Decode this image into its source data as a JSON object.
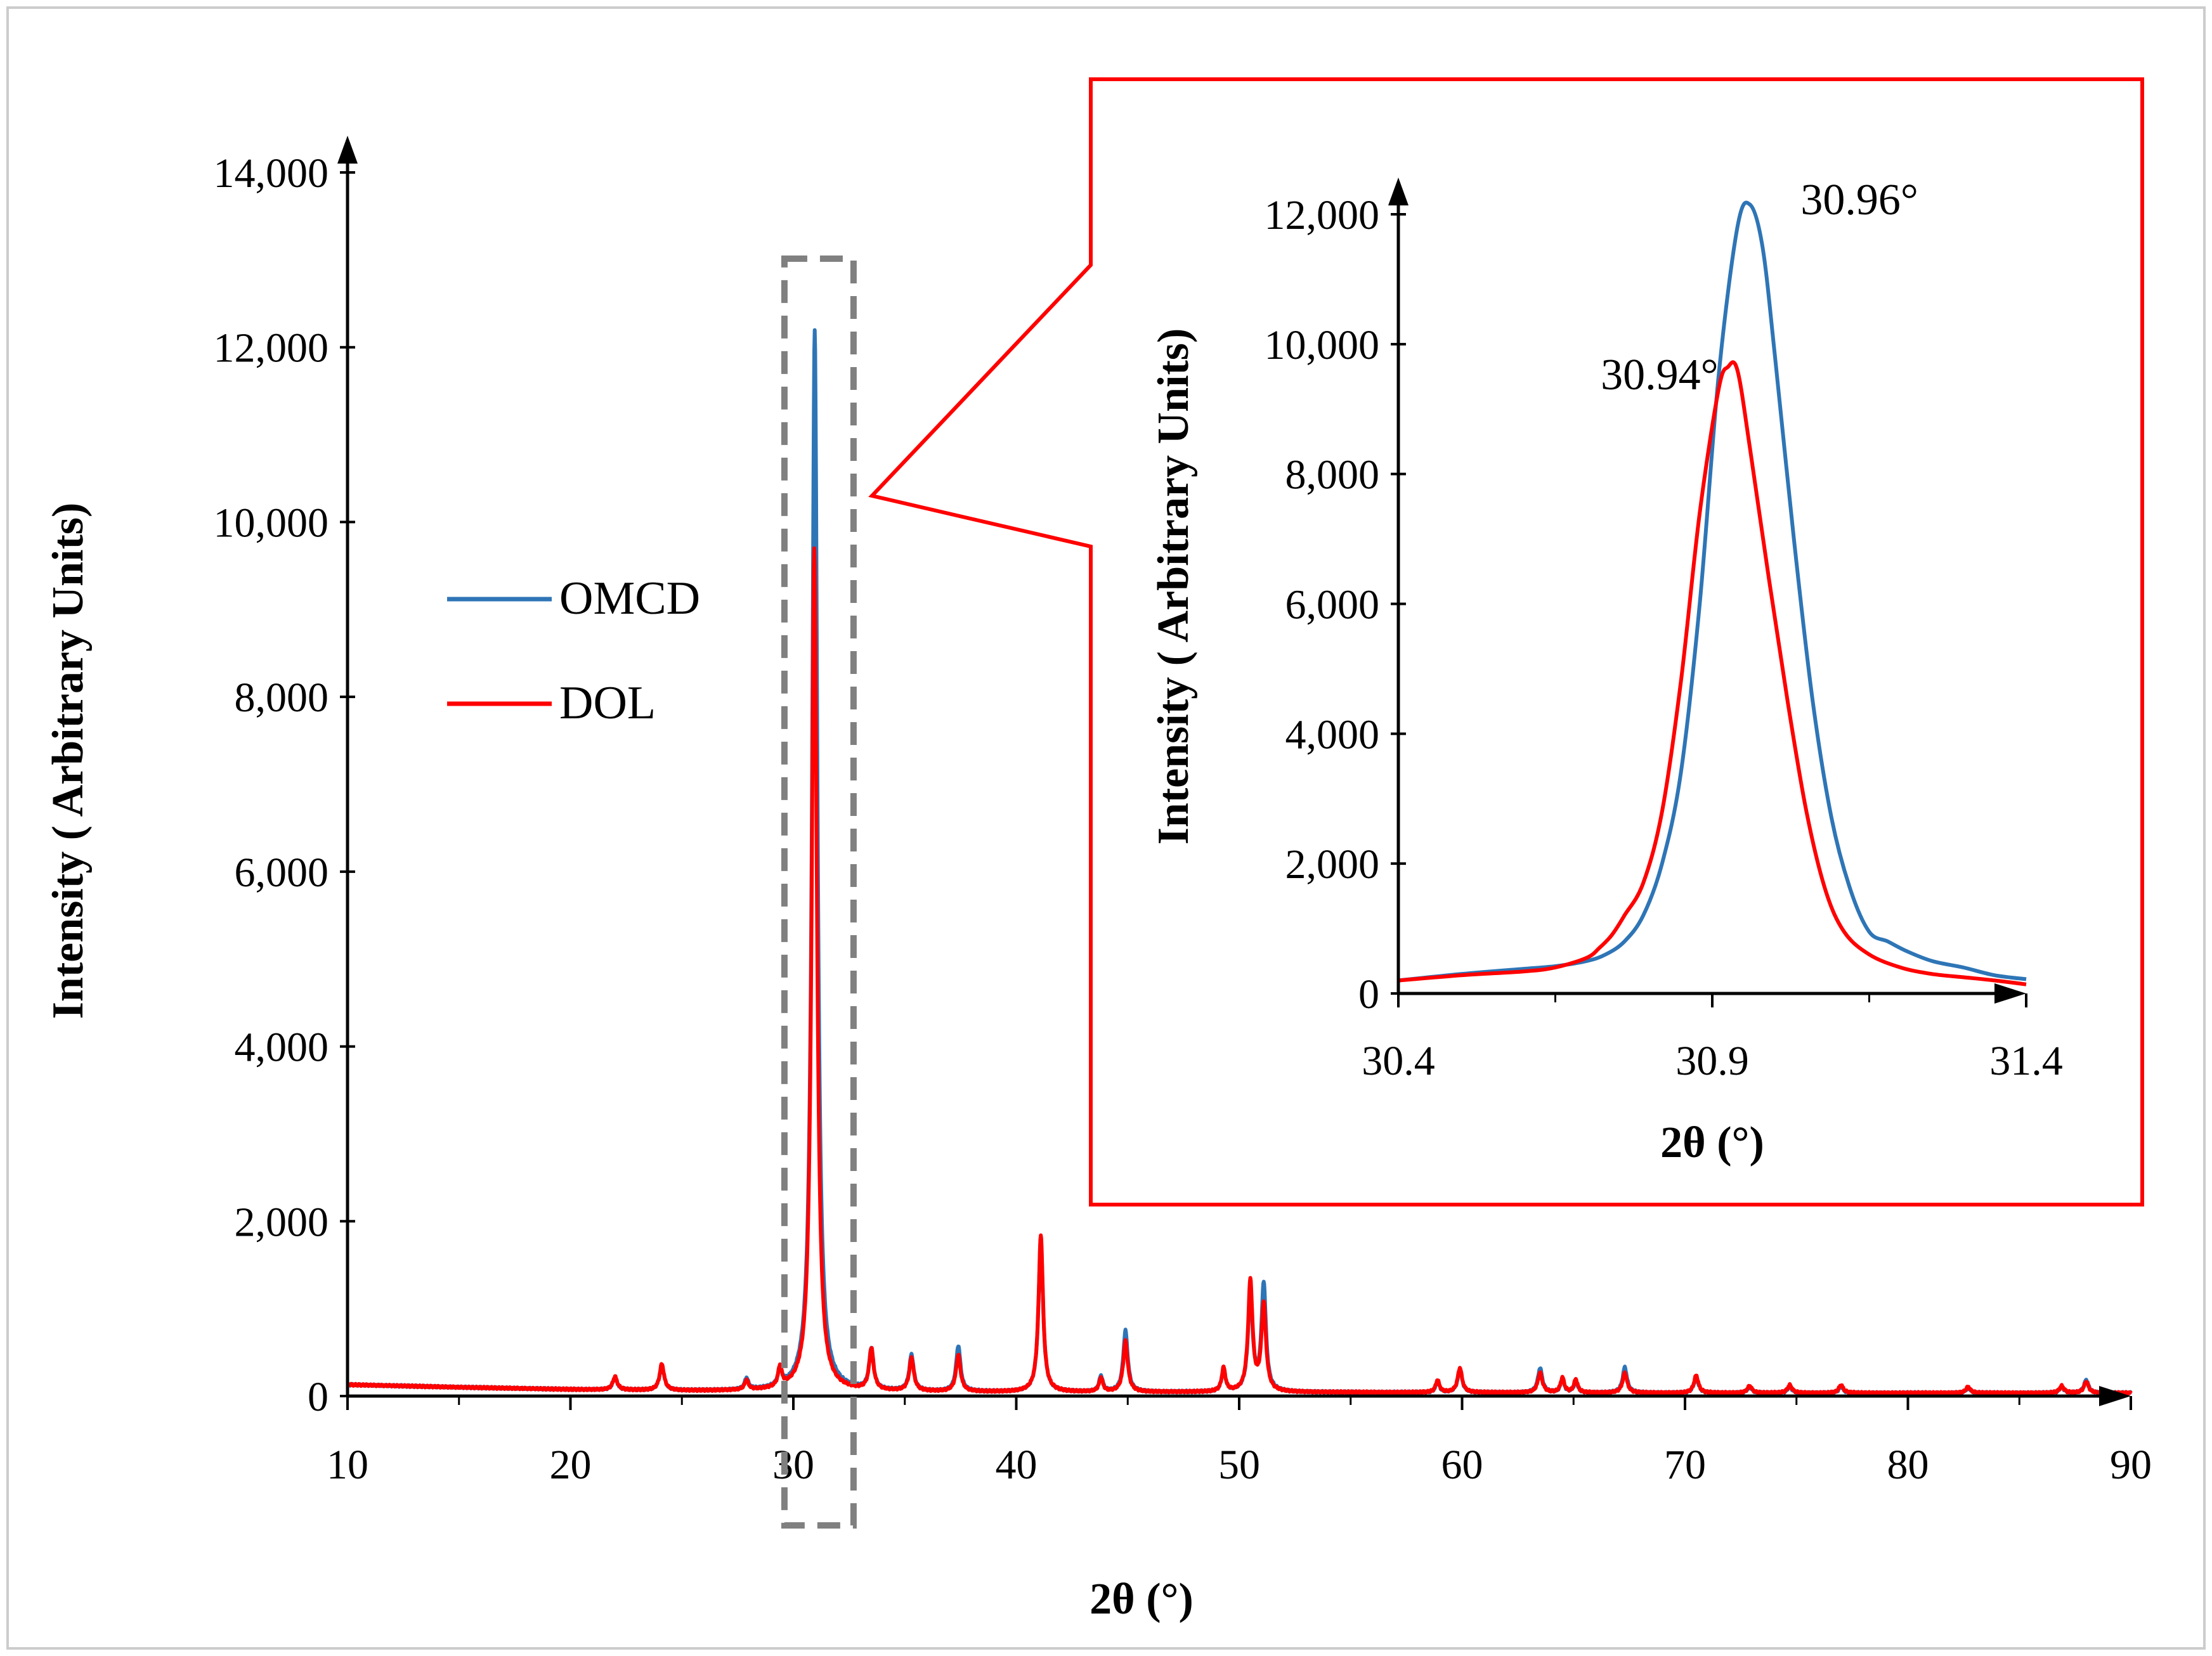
{
  "colors": {
    "omcd": "#2e75b6",
    "dol": "#ff0000",
    "inset_border": "#ff0000",
    "highlight_box": "#808080"
  },
  "legend": [
    {
      "label": "OMCD",
      "color": "#2e75b6"
    },
    {
      "label": "DOL",
      "color": "#ff0000"
    }
  ],
  "chart_data": [
    {
      "type": "line",
      "xlabel": "2θ (°)",
      "ylabel": "Intensity ( Arbitrary Units)",
      "xlim": [
        10,
        90
      ],
      "ylim": [
        0,
        14000
      ],
      "xticks": [
        10,
        20,
        30,
        40,
        50,
        60,
        70,
        80,
        90
      ],
      "xtick_labels": [
        "10",
        "20",
        "30",
        "40",
        "50",
        "60",
        "70",
        "80",
        "90"
      ],
      "yticks": [
        0,
        2000,
        4000,
        6000,
        8000,
        10000,
        12000,
        14000
      ],
      "ytick_labels": [
        "0",
        "2,000",
        "4,000",
        "6,000",
        "8,000",
        "10,000",
        "12,000",
        "14,000"
      ],
      "legend_position": "left",
      "grid": false,
      "highlight_range": [
        29.6,
        32.7
      ],
      "series": [
        {
          "name": "OMCD",
          "baseline": [
            [
              10,
              130
            ],
            [
              15,
              100
            ],
            [
              20,
              75
            ],
            [
              25,
              60
            ],
            [
              30,
              55
            ],
            [
              40,
              45
            ],
            [
              50,
              45
            ],
            [
              60,
              40
            ],
            [
              70,
              35
            ],
            [
              80,
              35
            ],
            [
              90,
              35
            ]
          ],
          "peaks": [
            [
              22.0,
              140,
              0.12
            ],
            [
              24.1,
              290,
              0.12
            ],
            [
              27.9,
              130,
              0.1
            ],
            [
              29.4,
              200,
              0.1
            ],
            [
              30.96,
              12150,
              0.14
            ],
            [
              33.5,
              470,
              0.12
            ],
            [
              35.3,
              410,
              0.12
            ],
            [
              37.4,
              520,
              0.12
            ],
            [
              41.1,
              1750,
              0.12
            ],
            [
              43.8,
              180,
              0.1
            ],
            [
              44.9,
              700,
              0.12
            ],
            [
              49.3,
              260,
              0.1
            ],
            [
              50.5,
              1150,
              0.12
            ],
            [
              51.1,
              1230,
              0.12
            ],
            [
              58.9,
              120,
              0.1
            ],
            [
              59.9,
              260,
              0.12
            ],
            [
              63.5,
              280,
              0.12
            ],
            [
              64.5,
              150,
              0.1
            ],
            [
              65.1,
              130,
              0.1
            ],
            [
              67.3,
              290,
              0.12
            ],
            [
              70.5,
              180,
              0.12
            ],
            [
              72.9,
              70,
              0.12
            ],
            [
              74.7,
              70,
              0.12
            ],
            [
              77.0,
              70,
              0.12
            ],
            [
              82.7,
              60,
              0.12
            ],
            [
              86.9,
              70,
              0.12
            ],
            [
              88.0,
              150,
              0.12
            ]
          ]
        },
        {
          "name": "DOL",
          "baseline": [
            [
              10,
              130
            ],
            [
              15,
              100
            ],
            [
              20,
              75
            ],
            [
              25,
              60
            ],
            [
              30,
              55
            ],
            [
              40,
              45
            ],
            [
              50,
              45
            ],
            [
              60,
              40
            ],
            [
              70,
              35
            ],
            [
              80,
              35
            ],
            [
              90,
              35
            ]
          ],
          "peaks": [
            [
              22.0,
              150,
              0.12
            ],
            [
              24.1,
              300,
              0.12
            ],
            [
              27.9,
              110,
              0.1
            ],
            [
              29.4,
              230,
              0.1
            ],
            [
              30.94,
              9650,
              0.14
            ],
            [
              33.5,
              470,
              0.12
            ],
            [
              35.3,
              380,
              0.12
            ],
            [
              37.4,
              420,
              0.12
            ],
            [
              41.1,
              1800,
              0.12
            ],
            [
              43.8,
              160,
              0.1
            ],
            [
              44.9,
              580,
              0.12
            ],
            [
              49.3,
              270,
              0.1
            ],
            [
              50.5,
              1260,
              0.12
            ],
            [
              51.1,
              1000,
              0.12
            ],
            [
              58.9,
              140,
              0.1
            ],
            [
              59.9,
              280,
              0.12
            ],
            [
              63.5,
              230,
              0.12
            ],
            [
              64.5,
              170,
              0.1
            ],
            [
              65.1,
              150,
              0.1
            ],
            [
              67.3,
              230,
              0.12
            ],
            [
              70.5,
              200,
              0.12
            ],
            [
              72.9,
              80,
              0.12
            ],
            [
              74.7,
              90,
              0.12
            ],
            [
              77.0,
              90,
              0.12
            ],
            [
              82.7,
              70,
              0.12
            ],
            [
              86.9,
              80,
              0.12
            ],
            [
              88.0,
              130,
              0.12
            ]
          ]
        }
      ]
    },
    {
      "type": "line",
      "xlabel": "2θ (°)",
      "ylabel": "Intensity ( Arbitrary Units)",
      "xlim": [
        30.4,
        31.4
      ],
      "ylim": [
        0,
        12000
      ],
      "xticks": [
        30.4,
        30.9,
        31.4
      ],
      "xtick_labels": [
        "30.4",
        "30.9",
        "31.4"
      ],
      "yticks": [
        0,
        2000,
        4000,
        6000,
        8000,
        10000,
        12000
      ],
      "ytick_labels": [
        "0",
        "2,000",
        "4,000",
        "6,000",
        "8,000",
        "10,000",
        "12,000"
      ],
      "grid": false,
      "annotations": [
        {
          "text": "30.96°",
          "x": 30.96,
          "y": 12100
        },
        {
          "text": "30.94°",
          "x": 30.94,
          "y": 9600
        }
      ],
      "series": [
        {
          "name": "OMCD",
          "points": [
            [
              30.4,
              200
            ],
            [
              30.5,
              300
            ],
            [
              30.6,
              380
            ],
            [
              30.65,
              420
            ],
            [
              30.7,
              500
            ],
            [
              30.73,
              600
            ],
            [
              30.76,
              800
            ],
            [
              30.79,
              1200
            ],
            [
              30.82,
              2000
            ],
            [
              30.85,
              3400
            ],
            [
              30.88,
              6000
            ],
            [
              30.91,
              9500
            ],
            [
              30.94,
              11800
            ],
            [
              30.96,
              12150
            ],
            [
              30.98,
              11500
            ],
            [
              31.0,
              9800
            ],
            [
              31.03,
              7000
            ],
            [
              31.06,
              4500
            ],
            [
              31.09,
              2700
            ],
            [
              31.12,
              1600
            ],
            [
              31.15,
              950
            ],
            [
              31.18,
              800
            ],
            [
              31.21,
              650
            ],
            [
              31.25,
              500
            ],
            [
              31.3,
              400
            ],
            [
              31.35,
              280
            ],
            [
              31.4,
              220
            ]
          ]
        },
        {
          "name": "DOL",
          "points": [
            [
              30.4,
              200
            ],
            [
              30.5,
              280
            ],
            [
              30.6,
              340
            ],
            [
              30.65,
              400
            ],
            [
              30.7,
              550
            ],
            [
              30.72,
              700
            ],
            [
              30.74,
              900
            ],
            [
              30.76,
              1200
            ],
            [
              30.79,
              1700
            ],
            [
              30.82,
              2800
            ],
            [
              30.85,
              4800
            ],
            [
              30.88,
              7400
            ],
            [
              30.91,
              9300
            ],
            [
              30.925,
              9650
            ],
            [
              30.94,
              9600
            ],
            [
              30.96,
              8400
            ],
            [
              30.99,
              6400
            ],
            [
              31.02,
              4500
            ],
            [
              31.05,
              2800
            ],
            [
              31.08,
              1600
            ],
            [
              31.11,
              950
            ],
            [
              31.15,
              600
            ],
            [
              31.2,
              400
            ],
            [
              31.25,
              300
            ],
            [
              31.3,
              250
            ],
            [
              31.35,
              200
            ],
            [
              31.4,
              140
            ]
          ]
        }
      ]
    }
  ]
}
